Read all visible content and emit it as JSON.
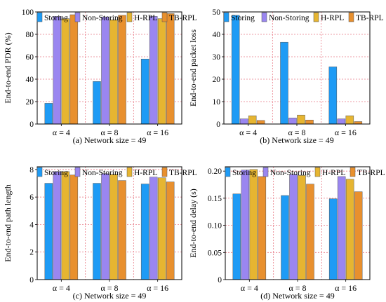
{
  "legend": {
    "entries": [
      {
        "name": "Storing",
        "color": "#1E9BF5"
      },
      {
        "name": "Non-Storing",
        "color": "#9A86F0"
      },
      {
        "name": "H-RPL",
        "color": "#E6B531"
      },
      {
        "name": "TB-RPL",
        "color": "#E8902E"
      }
    ]
  },
  "chart_data": [
    {
      "type": "bar",
      "caption": "(a) Network size = 49",
      "ylabel": "End-to-end PDR (%)",
      "categories": [
        "α = 4",
        "α = 8",
        "α = 16"
      ],
      "ylim": [
        0,
        100
      ],
      "yticks": [
        "0",
        "20",
        "40",
        "60",
        "80",
        "100"
      ],
      "ytick_values": [
        0,
        20,
        40,
        60,
        80,
        100
      ],
      "grid": true,
      "legend_position": "top",
      "series": [
        {
          "name": "Storing",
          "values": [
            18.5,
            38,
            58
          ]
        },
        {
          "name": "Non-Storing",
          "values": [
            96,
            95.5,
            96
          ]
        },
        {
          "name": "H-RPL",
          "values": [
            94,
            93,
            94
          ]
        },
        {
          "name": "TB-RPL",
          "values": [
            97.5,
            97,
            98.5
          ]
        }
      ]
    },
    {
      "type": "bar",
      "caption": "(b) Network size = 49",
      "ylabel": "End-to-end packet loss",
      "categories": [
        "α = 4",
        "α = 8",
        "α = 16"
      ],
      "ylim": [
        0,
        50
      ],
      "yticks": [
        "0",
        "10",
        "20",
        "30",
        "40",
        "50"
      ],
      "ytick_values": [
        0,
        10,
        20,
        30,
        40,
        50
      ],
      "grid": true,
      "legend_position": "top",
      "series": [
        {
          "name": "Storing",
          "values": [
            48.5,
            36.5,
            25.5
          ]
        },
        {
          "name": "Non-Storing",
          "values": [
            2.3,
            2.7,
            2.3
          ]
        },
        {
          "name": "H-RPL",
          "values": [
            3.7,
            4,
            3.7
          ]
        },
        {
          "name": "TB-RPL",
          "values": [
            1.6,
            1.8,
            1.1
          ]
        }
      ]
    },
    {
      "type": "bar",
      "caption": "(c) Network size = 49",
      "ylabel": "End-to-end path length",
      "categories": [
        "α = 4",
        "α = 8",
        "α = 16"
      ],
      "ylim": [
        0,
        8.2
      ],
      "yticks": [
        "0",
        "2",
        "4",
        "6",
        "8"
      ],
      "ytick_values": [
        0,
        2,
        4,
        6,
        8
      ],
      "grid": true,
      "legend_position": "top",
      "series": [
        {
          "name": "Storing",
          "values": [
            7.0,
            7.0,
            6.95
          ]
        },
        {
          "name": "Non-Storing",
          "values": [
            7.85,
            7.7,
            7.45
          ]
        },
        {
          "name": "H-RPL",
          "values": [
            7.85,
            7.65,
            7.4
          ]
        },
        {
          "name": "TB-RPL",
          "values": [
            7.6,
            7.2,
            7.1
          ]
        }
      ]
    },
    {
      "type": "bar",
      "caption": "(d) Network size = 49",
      "ylabel": "End-to-end delay (s)",
      "categories": [
        "α = 4",
        "α = 8",
        "α = 16"
      ],
      "ylim": [
        0,
        0.208
      ],
      "yticks": [
        "0",
        "0.05",
        "0.10",
        "0.15",
        "0.20"
      ],
      "ytick_values": [
        0,
        0.05,
        0.1,
        0.15,
        0.2
      ],
      "grid": true,
      "legend_position": "top",
      "series": [
        {
          "name": "Storing",
          "values": [
            0.158,
            0.155,
            0.149
          ]
        },
        {
          "name": "Non-Storing",
          "values": [
            0.202,
            0.194,
            0.19
          ]
        },
        {
          "name": "H-RPL",
          "values": [
            0.203,
            0.192,
            0.185
          ]
        },
        {
          "name": "TB-RPL",
          "values": [
            0.19,
            0.176,
            0.162
          ]
        }
      ]
    }
  ]
}
